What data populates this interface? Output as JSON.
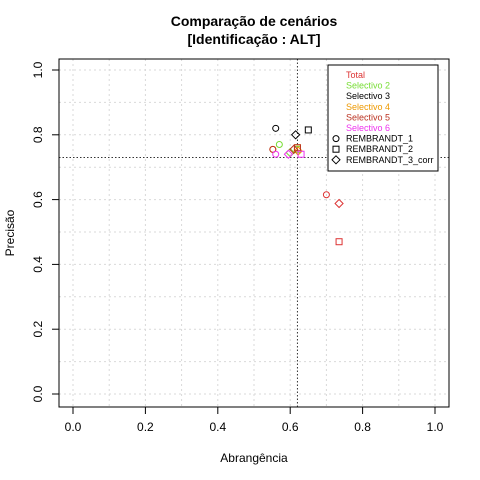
{
  "chart_data": {
    "type": "scatter",
    "title": [
      "Comparação de cenários",
      "[Identificação : ALT]"
    ],
    "xlabel": "Abrangência",
    "ylabel": "Precisão",
    "xlim": [
      0.0,
      1.0
    ],
    "ylim": [
      0.0,
      1.0
    ],
    "xticks": [
      "0.0",
      "0.2",
      "0.4",
      "0.6",
      "0.8",
      "1.0"
    ],
    "yticks": [
      "0.0",
      "0.2",
      "0.4",
      "0.6",
      "0.8",
      "1.0"
    ],
    "grid": true,
    "reference_lines": {
      "x": 0.62,
      "y": 0.73
    },
    "legend_position": "top-right",
    "colors": {
      "Total": "#dd3333",
      "Selectivo 2": "#77dd33",
      "Selectivo 3": "#000000",
      "Selectivo 4": "#ee9900",
      "Selectivo 5": "#bb3322",
      "Selectivo 6": "#ee33ee"
    },
    "legend_colors": [
      {
        "label": "Total",
        "color": "#dd3333"
      },
      {
        "label": "Selectivo 2",
        "color": "#77dd33"
      },
      {
        "label": "Selectivo 3",
        "color": "#000000"
      },
      {
        "label": "Selectivo 4",
        "color": "#ee9900"
      },
      {
        "label": "Selectivo 5",
        "color": "#bb3322"
      },
      {
        "label": "Selectivo 6",
        "color": "#ee33ee"
      }
    ],
    "legend_shapes": [
      {
        "label": "REMBRANDT_1",
        "shape": "circle"
      },
      {
        "label": "REMBRANDT_2",
        "shape": "square"
      },
      {
        "label": "REMBRANDT_3_corr",
        "shape": "diamond"
      }
    ],
    "points": [
      {
        "group": "Total",
        "shape": "circle",
        "x": 0.7,
        "y": 0.615
      },
      {
        "group": "Total",
        "shape": "square",
        "x": 0.735,
        "y": 0.47
      },
      {
        "group": "Total",
        "shape": "diamond",
        "x": 0.735,
        "y": 0.588
      },
      {
        "group": "Selectivo 2",
        "shape": "circle",
        "x": 0.57,
        "y": 0.77
      },
      {
        "group": "Selectivo 2",
        "shape": "square",
        "x": 0.62,
        "y": 0.755
      },
      {
        "group": "Selectivo 2",
        "shape": "diamond",
        "x": 0.6,
        "y": 0.745
      },
      {
        "group": "Selectivo 3",
        "shape": "circle",
        "x": 0.56,
        "y": 0.82
      },
      {
        "group": "Selectivo 3",
        "shape": "square",
        "x": 0.65,
        "y": 0.815
      },
      {
        "group": "Selectivo 3",
        "shape": "diamond",
        "x": 0.615,
        "y": 0.8
      },
      {
        "group": "Selectivo 4",
        "shape": "circle",
        "x": 0.552,
        "y": 0.755
      },
      {
        "group": "Selectivo 4",
        "shape": "square",
        "x": 0.62,
        "y": 0.76
      },
      {
        "group": "Selectivo 4",
        "shape": "diamond",
        "x": 0.622,
        "y": 0.75
      },
      {
        "group": "Selectivo 5",
        "shape": "circle",
        "x": 0.552,
        "y": 0.755
      },
      {
        "group": "Selectivo 5",
        "shape": "square",
        "x": 0.62,
        "y": 0.76
      },
      {
        "group": "Selectivo 5",
        "shape": "diamond",
        "x": 0.61,
        "y": 0.755
      },
      {
        "group": "Selectivo 6",
        "shape": "circle",
        "x": 0.56,
        "y": 0.74
      },
      {
        "group": "Selectivo 6",
        "shape": "square",
        "x": 0.63,
        "y": 0.74
      },
      {
        "group": "Selectivo 6",
        "shape": "diamond",
        "x": 0.595,
        "y": 0.74
      }
    ]
  }
}
